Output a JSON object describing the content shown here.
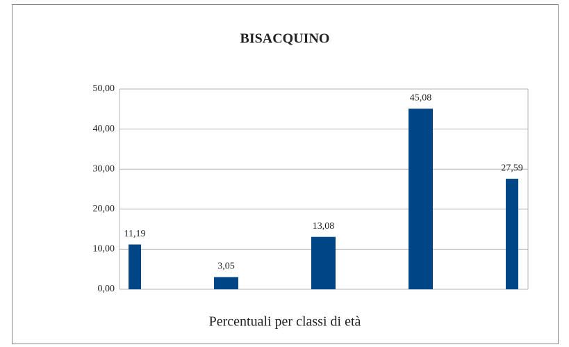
{
  "chart_data": {
    "type": "bar",
    "title": "BISACQUINO",
    "x_label": "Percentuali per classi di età",
    "categories": [
      null,
      null,
      null,
      null,
      null
    ],
    "values": [
      11.19,
      3.05,
      13.08,
      45.08,
      27.59
    ],
    "value_labels": [
      "11,19",
      "3,05",
      "13,08",
      "45,08",
      "27,59"
    ],
    "color": "#004586",
    "ylim": [
      0,
      50
    ],
    "yticks": [
      {
        "value": 0,
        "label": "0,00"
      },
      {
        "value": 10,
        "label": "10,00"
      },
      {
        "value": 20,
        "label": "20,00"
      },
      {
        "value": 30,
        "label": "30,00"
      },
      {
        "value": 40,
        "label": "40,00"
      },
      {
        "value": 50,
        "label": "50,00"
      }
    ],
    "grid": true
  }
}
